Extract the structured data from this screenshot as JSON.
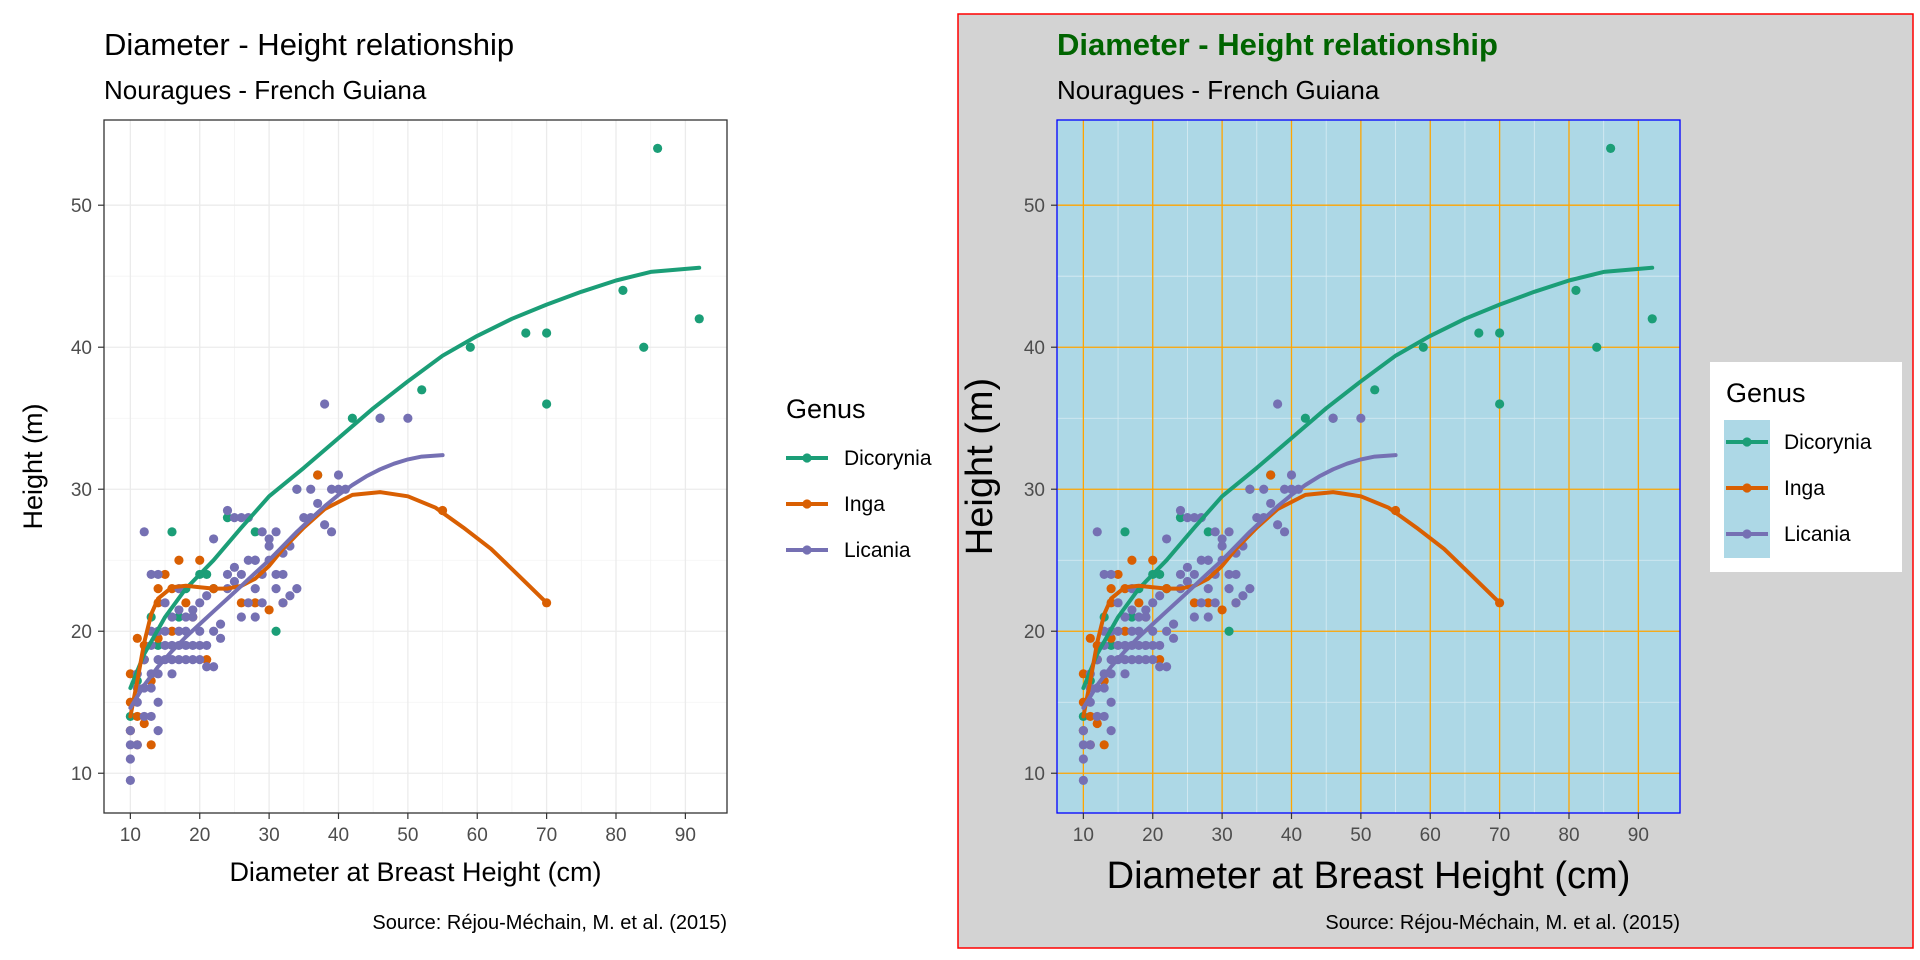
{
  "chart_data": [
    {
      "type": "scatter",
      "panel": "left",
      "title": "Diameter - Height relationship",
      "subtitle": "Nouragues - French Guiana",
      "xlabel": "Diameter at Breast Height (cm)",
      "ylabel": "Height (m)",
      "caption": "Source: Réjou-Méchain, M. et al. (2015)",
      "xlim": [
        6.2,
        96.0
      ],
      "ylim": [
        7.2,
        56.0
      ],
      "xticks": [
        10,
        20,
        30,
        40,
        50,
        60,
        70,
        80,
        90
      ],
      "yticks": [
        10,
        20,
        30,
        40,
        50
      ],
      "grid": true,
      "legend": {
        "title": "Genus",
        "position": "right"
      },
      "theme": {
        "panel_bg": "#ffffff",
        "grid_color": "#ebebeb",
        "border_color": "#333333",
        "title_color": "#000000",
        "title_bold": false,
        "plot_bg": "#ffffff",
        "plot_border": "none"
      }
    },
    {
      "type": "scatter",
      "panel": "right",
      "title": "Diameter - Height relationship",
      "subtitle": "Nouragues - French Guiana",
      "xlabel": "Diameter at Breast Height (cm)",
      "ylabel": "Height (m)",
      "caption": "Source: Réjou-Méchain, M. et al. (2015)",
      "xlim": [
        6.2,
        96.0
      ],
      "ylim": [
        7.2,
        56.0
      ],
      "xticks": [
        10,
        20,
        30,
        40,
        50,
        60,
        70,
        80,
        90
      ],
      "yticks": [
        10,
        20,
        30,
        40,
        50
      ],
      "grid": true,
      "legend": {
        "title": "Genus",
        "position": "right"
      },
      "theme": {
        "panel_bg": "#add8e6",
        "grid_color": "#ffa500",
        "border_color": "#0000ff",
        "title_color": "#006400",
        "title_bold": true,
        "plot_bg": "#d3d3d3",
        "plot_border": "#ff0000"
      }
    }
  ],
  "series": [
    {
      "name": "Dicorynia",
      "color": "#1b9e77",
      "points": [
        [
          10,
          14
        ],
        [
          11,
          16.5
        ],
        [
          12,
          18
        ],
        [
          13,
          21
        ],
        [
          14,
          19
        ],
        [
          16,
          27
        ],
        [
          17,
          21
        ],
        [
          18,
          23
        ],
        [
          20,
          24
        ],
        [
          21,
          24
        ],
        [
          22,
          23
        ],
        [
          24,
          28
        ],
        [
          28,
          27
        ],
        [
          31,
          20
        ],
        [
          34,
          30
        ],
        [
          37,
          31
        ],
        [
          42,
          35
        ],
        [
          46,
          35
        ],
        [
          52,
          37
        ],
        [
          59,
          40
        ],
        [
          67,
          41
        ],
        [
          70,
          36
        ],
        [
          70,
          41
        ],
        [
          81,
          44
        ],
        [
          84,
          40
        ],
        [
          86,
          54
        ],
        [
          92,
          42
        ]
      ],
      "smooth": [
        [
          10,
          16
        ],
        [
          12,
          18.4
        ],
        [
          15,
          21
        ],
        [
          18,
          23
        ],
        [
          22,
          25
        ],
        [
          26,
          27.3
        ],
        [
          30,
          29.5
        ],
        [
          35,
          31.5
        ],
        [
          40,
          33.6
        ],
        [
          45,
          35.7
        ],
        [
          50,
          37.6
        ],
        [
          55,
          39.4
        ],
        [
          60,
          40.8
        ],
        [
          65,
          42
        ],
        [
          70,
          43
        ],
        [
          75,
          43.9
        ],
        [
          80,
          44.7
        ],
        [
          85,
          45.3
        ],
        [
          92,
          45.6
        ]
      ]
    },
    {
      "name": "Inga",
      "color": "#d95f02",
      "points": [
        [
          10,
          13
        ],
        [
          10,
          15
        ],
        [
          10,
          17
        ],
        [
          11,
          12
        ],
        [
          11,
          14
        ],
        [
          11,
          19.5
        ],
        [
          12,
          13.5
        ],
        [
          12,
          18
        ],
        [
          12,
          19
        ],
        [
          13,
          12
        ],
        [
          13,
          16.5
        ],
        [
          14,
          19.5
        ],
        [
          14,
          22
        ],
        [
          14,
          23
        ],
        [
          15,
          24
        ],
        [
          16,
          20
        ],
        [
          16,
          23
        ],
        [
          17,
          25
        ],
        [
          18,
          22
        ],
        [
          19,
          21
        ],
        [
          20,
          25
        ],
        [
          21,
          18
        ],
        [
          22,
          23
        ],
        [
          26,
          22
        ],
        [
          28,
          22
        ],
        [
          30,
          21.5
        ],
        [
          32,
          22
        ],
        [
          37,
          31
        ],
        [
          55,
          28.5
        ],
        [
          70,
          22
        ]
      ],
      "smooth": [
        [
          10,
          14
        ],
        [
          11,
          16.5
        ],
        [
          12,
          19.2
        ],
        [
          13,
          21.2
        ],
        [
          14,
          22.3
        ],
        [
          16,
          23.1
        ],
        [
          18,
          23.2
        ],
        [
          20,
          23.1
        ],
        [
          22,
          23
        ],
        [
          24,
          23
        ],
        [
          26,
          23.2
        ],
        [
          28,
          23.7
        ],
        [
          30,
          24.6
        ],
        [
          32,
          25.8
        ],
        [
          35,
          27.3
        ],
        [
          38,
          28.6
        ],
        [
          42,
          29.6
        ],
        [
          46,
          29.8
        ],
        [
          50,
          29.5
        ],
        [
          54,
          28.7
        ],
        [
          58,
          27.3
        ],
        [
          62,
          25.8
        ],
        [
          66,
          23.9
        ],
        [
          70,
          22
        ]
      ]
    },
    {
      "name": "Licania",
      "color": "#7570b3",
      "points": [
        [
          10,
          9.5
        ],
        [
          10,
          11
        ],
        [
          10,
          12
        ],
        [
          10,
          13
        ],
        [
          11,
          12
        ],
        [
          11,
          15
        ],
        [
          11,
          16
        ],
        [
          11,
          17
        ],
        [
          12,
          14
        ],
        [
          12,
          16
        ],
        [
          12,
          18
        ],
        [
          13,
          14
        ],
        [
          13,
          16
        ],
        [
          13,
          17
        ],
        [
          13,
          19
        ],
        [
          14,
          13
        ],
        [
          14,
          15
        ],
        [
          14,
          17
        ],
        [
          14,
          18
        ],
        [
          15,
          18
        ],
        [
          15,
          19
        ],
        [
          15,
          20
        ],
        [
          16,
          17
        ],
        [
          16,
          18
        ],
        [
          16,
          19
        ],
        [
          17,
          18
        ],
        [
          17,
          19
        ],
        [
          17,
          20
        ],
        [
          18,
          18
        ],
        [
          18,
          19
        ],
        [
          18,
          20
        ],
        [
          18,
          21
        ],
        [
          19,
          18
        ],
        [
          19,
          19
        ],
        [
          19,
          21
        ],
        [
          20,
          18
        ],
        [
          20,
          19
        ],
        [
          20,
          20
        ],
        [
          20,
          22
        ],
        [
          21,
          17.5
        ],
        [
          21,
          19
        ],
        [
          22,
          17.5
        ],
        [
          22,
          20
        ],
        [
          23,
          19.5
        ],
        [
          23,
          20.5
        ],
        [
          24,
          23
        ],
        [
          24,
          24
        ],
        [
          25,
          23.5
        ],
        [
          25,
          24.5
        ],
        [
          26,
          21
        ],
        [
          26,
          24
        ],
        [
          27,
          22
        ],
        [
          27,
          25
        ],
        [
          28,
          21
        ],
        [
          28,
          23
        ],
        [
          28,
          25
        ],
        [
          29,
          22
        ],
        [
          29,
          24
        ],
        [
          30,
          25
        ],
        [
          30,
          26
        ],
        [
          31,
          23
        ],
        [
          31,
          24
        ],
        [
          32,
          22
        ],
        [
          32,
          24
        ],
        [
          33,
          22.5
        ],
        [
          33,
          26
        ],
        [
          34,
          23
        ],
        [
          34,
          30
        ],
        [
          35,
          28
        ],
        [
          36,
          28
        ],
        [
          36,
          30
        ],
        [
          37,
          29
        ],
        [
          38,
          36
        ],
        [
          38,
          27.5
        ],
        [
          39,
          27
        ],
        [
          39,
          30
        ],
        [
          40,
          30
        ],
        [
          40,
          31
        ],
        [
          41,
          30
        ],
        [
          13,
          24
        ],
        [
          14,
          24
        ],
        [
          15,
          22
        ],
        [
          16,
          21
        ],
        [
          17,
          23
        ],
        [
          19,
          21.5
        ],
        [
          21,
          22.5
        ],
        [
          22,
          26.5
        ],
        [
          24,
          28.5
        ],
        [
          25,
          28
        ],
        [
          26,
          28
        ],
        [
          27,
          28
        ],
        [
          28,
          25
        ],
        [
          29,
          27
        ],
        [
          30,
          26.5
        ],
        [
          31,
          27
        ],
        [
          32,
          25.5
        ],
        [
          12,
          27
        ],
        [
          46,
          35
        ],
        [
          50,
          35
        ],
        [
          14,
          20
        ],
        [
          13,
          20
        ],
        [
          17,
          21.5
        ]
      ],
      "smooth": [
        [
          10,
          14.6
        ],
        [
          12,
          16.2
        ],
        [
          14,
          17.5
        ],
        [
          16,
          18.6
        ],
        [
          18,
          19.6
        ],
        [
          20,
          20.5
        ],
        [
          22,
          21.4
        ],
        [
          24,
          22.3
        ],
        [
          26,
          23.2
        ],
        [
          28,
          24.1
        ],
        [
          30,
          25
        ],
        [
          32,
          26
        ],
        [
          34,
          27
        ],
        [
          36,
          27.9
        ],
        [
          38,
          28.8
        ],
        [
          40,
          29.6
        ],
        [
          42,
          30.3
        ],
        [
          44,
          30.9
        ],
        [
          46,
          31.4
        ],
        [
          48,
          31.8
        ],
        [
          50,
          32.1
        ],
        [
          52,
          32.3
        ],
        [
          55,
          32.4
        ]
      ]
    }
  ]
}
